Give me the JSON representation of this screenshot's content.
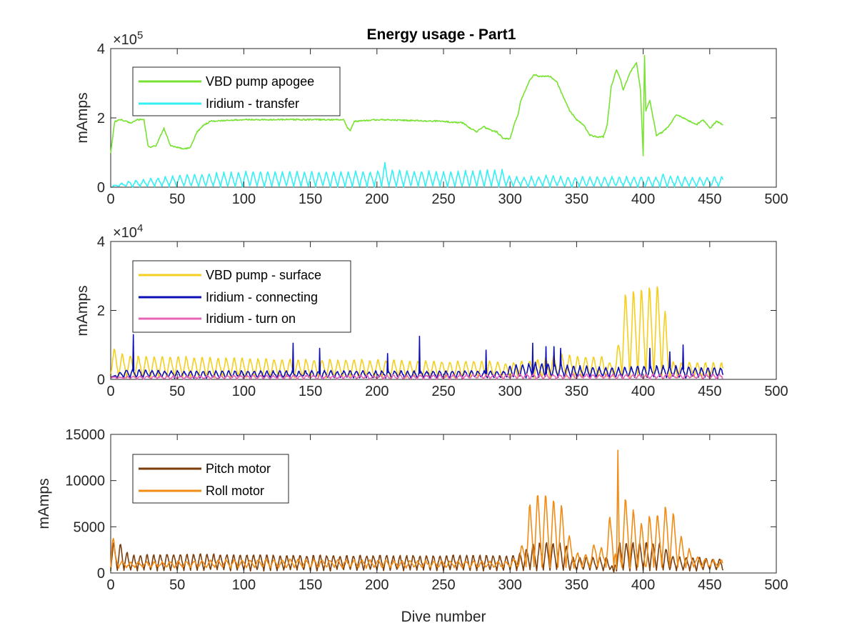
{
  "title": "Energy usage - Part1",
  "chart_data": [
    {
      "type": "line",
      "title": "Energy usage - Part1",
      "ylabel": "mAmps",
      "xlabel": "",
      "xlim": [
        0,
        500
      ],
      "ylim": [
        0,
        4
      ],
      "y_exponent": "5",
      "y_multiplier": "×10",
      "x_ticks": [
        "0",
        "50",
        "100",
        "150",
        "200",
        "250",
        "300",
        "350",
        "400",
        "450",
        "500"
      ],
      "y_ticks": [
        "0",
        "2",
        "4"
      ],
      "legend_position": "top-left",
      "series": [
        {
          "name": "VBD pump apogee",
          "color": "#77e231",
          "style": "smooth",
          "x": [
            0,
            3,
            8,
            15,
            20,
            25,
            28,
            30,
            34,
            40,
            45,
            50,
            55,
            60,
            65,
            70,
            75,
            100,
            150,
            175,
            178,
            180,
            183,
            200,
            250,
            265,
            270,
            275,
            280,
            285,
            290,
            295,
            300,
            303,
            306,
            308,
            315,
            318,
            322,
            325,
            330,
            335,
            340,
            345,
            350,
            355,
            360,
            365,
            370,
            373,
            376,
            380,
            383,
            385,
            390,
            395,
            398,
            400,
            401,
            402,
            405,
            410,
            415,
            420,
            425,
            430,
            435,
            440,
            445,
            450,
            455,
            460
          ],
          "y": [
            1.0,
            1.9,
            1.95,
            1.85,
            1.95,
            1.95,
            1.2,
            1.15,
            1.2,
            1.7,
            1.2,
            1.15,
            1.1,
            1.15,
            1.6,
            1.8,
            1.9,
            1.95,
            1.95,
            1.95,
            1.7,
            1.65,
            1.9,
            1.95,
            1.9,
            1.85,
            1.7,
            1.6,
            1.75,
            1.65,
            1.6,
            1.4,
            1.4,
            1.8,
            2.1,
            2.5,
            3.1,
            3.25,
            3.2,
            3.2,
            3.2,
            3.05,
            2.6,
            2.2,
            1.95,
            1.8,
            1.5,
            1.45,
            1.45,
            1.8,
            2.9,
            3.4,
            3.1,
            2.8,
            3.3,
            3.6,
            2.8,
            0.9,
            3.8,
            2.2,
            2.5,
            1.5,
            1.6,
            1.8,
            2.1,
            2.0,
            1.9,
            1.8,
            1.95,
            1.7,
            1.9,
            1.8
          ]
        },
        {
          "name": "Iridium - transfer",
          "color": "#33f0f5",
          "style": "saw",
          "period": 5.5,
          "x": [
            0,
            10,
            50,
            100,
            150,
            200,
            205,
            210,
            250,
            295,
            298,
            300,
            310,
            320,
            330,
            340,
            350,
            360,
            370,
            380,
            390,
            400,
            410,
            415,
            420,
            430,
            440,
            450,
            460
          ],
          "y": [
            0.0,
            0.15,
            0.35,
            0.45,
            0.45,
            0.45,
            0.75,
            0.5,
            0.45,
            0.5,
            0.4,
            0.3,
            0.3,
            0.3,
            0.35,
            0.3,
            0.3,
            0.3,
            0.3,
            0.3,
            0.3,
            0.3,
            0.3,
            0.4,
            0.3,
            0.3,
            0.3,
            0.3,
            0.3
          ],
          "y_base": 0.02
        }
      ]
    },
    {
      "type": "line",
      "title": "",
      "ylabel": "mAmps",
      "xlabel": "",
      "xlim": [
        0,
        500
      ],
      "ylim": [
        0,
        4
      ],
      "y_exponent": "4",
      "y_multiplier": "×10",
      "x_ticks": [
        "0",
        "50",
        "100",
        "150",
        "200",
        "250",
        "300",
        "350",
        "400",
        "450",
        "500"
      ],
      "y_ticks": [
        "0",
        "2",
        "4"
      ],
      "legend_position": "top-left",
      "series": [
        {
          "name": "VBD pump - surface",
          "color": "#f5cf1f",
          "style": "saw",
          "period": 6,
          "x": [
            0,
            5,
            10,
            20,
            50,
            100,
            150,
            200,
            250,
            295,
            298,
            300,
            320,
            340,
            350,
            370,
            375,
            380,
            385,
            390,
            400,
            410,
            415,
            420,
            425,
            430,
            440,
            450,
            460
          ],
          "y": [
            1.0,
            0.9,
            0.75,
            0.7,
            0.7,
            0.65,
            0.6,
            0.6,
            0.55,
            0.55,
            0.45,
            0.5,
            0.6,
            0.8,
            0.7,
            0.7,
            0.5,
            0.7,
            2.6,
            2.7,
            2.8,
            2.9,
            2.8,
            0.55,
            0.5,
            0.5,
            0.5,
            0.5,
            0.5
          ],
          "y_base": 0.05
        },
        {
          "name": "Iridium - connecting",
          "color": "#0b0fb5",
          "style": "saw",
          "period": 4.8,
          "x": [
            0,
            10,
            50,
            100,
            150,
            200,
            250,
            295,
            300,
            320,
            340,
            350,
            380,
            400,
            420,
            440,
            460
          ],
          "y": [
            0.05,
            0.3,
            0.25,
            0.25,
            0.25,
            0.25,
            0.25,
            0.25,
            0.4,
            0.5,
            0.45,
            0.4,
            0.35,
            0.4,
            0.4,
            0.35,
            0.35
          ],
          "y_base": 0.05,
          "spikes": [
            {
              "x": 17,
              "y": 1.3
            },
            {
              "x": 137,
              "y": 1.05
            },
            {
              "x": 157,
              "y": 0.9
            },
            {
              "x": 208,
              "y": 0.75
            },
            {
              "x": 232,
              "y": 1.25
            },
            {
              "x": 282,
              "y": 0.85
            },
            {
              "x": 317,
              "y": 1.05
            },
            {
              "x": 327,
              "y": 0.95
            },
            {
              "x": 333,
              "y": 0.95
            },
            {
              "x": 338,
              "y": 0.9
            },
            {
              "x": 405,
              "y": 0.9
            },
            {
              "x": 420,
              "y": 0.8
            },
            {
              "x": 430,
              "y": 1.0
            }
          ]
        },
        {
          "name": "Iridium - turn on",
          "color": "#e864b4",
          "style": "saw",
          "period": 5,
          "x": [
            0,
            50,
            100,
            200,
            300,
            350,
            400,
            460
          ],
          "y": [
            0.08,
            0.1,
            0.12,
            0.12,
            0.15,
            0.15,
            0.15,
            0.15
          ],
          "y_base": 0.02
        }
      ]
    },
    {
      "type": "line",
      "title": "",
      "ylabel": "mAmps",
      "xlabel": "Dive number",
      "xlim": [
        0,
        500
      ],
      "ylim": [
        0,
        15000
      ],
      "y_exponent": "",
      "y_multiplier": "",
      "x_ticks": [
        "0",
        "50",
        "100",
        "150",
        "200",
        "250",
        "300",
        "350",
        "400",
        "450",
        "500"
      ],
      "y_ticks": [
        "0",
        "5000",
        "10000",
        "15000"
      ],
      "legend_position": "top-left",
      "series": [
        {
          "name": "Pitch motor",
          "color": "#7a3d0b",
          "style": "saw",
          "period": 5,
          "x": [
            0,
            3,
            8,
            12,
            15,
            50,
            100,
            150,
            200,
            250,
            296,
            300,
            305,
            310,
            315,
            320,
            330,
            340,
            343,
            345,
            360,
            375,
            378,
            380,
            383,
            385,
            400,
            410,
            415,
            420,
            425,
            430,
            450,
            460
          ],
          "y": [
            3800,
            3400,
            3400,
            2400,
            2000,
            2200,
            2100,
            2000,
            2000,
            2000,
            2000,
            2000,
            2200,
            2400,
            3200,
            3500,
            3500,
            3500,
            3000,
            1800,
            1800,
            1800,
            0,
            3500,
            3500,
            3500,
            3500,
            3500,
            3500,
            2000,
            1900,
            1800,
            1700,
            1600
          ],
          "y_base": 300
        },
        {
          "name": "Roll motor",
          "color": "#f08c16",
          "style": "saw",
          "period": 6,
          "x": [
            0,
            1,
            3,
            8,
            15,
            50,
            100,
            150,
            200,
            250,
            296,
            300,
            305,
            310,
            315,
            320,
            325,
            330,
            335,
            340,
            345,
            350,
            355,
            360,
            365,
            370,
            375,
            378,
            380,
            381,
            382,
            383,
            385,
            390,
            395,
            400,
            402,
            404,
            410,
            415,
            420,
            425,
            430,
            440,
            450,
            460
          ],
          "y": [
            5500,
            7000,
            2500,
            1300,
            1200,
            1300,
            1500,
            1500,
            1400,
            1300,
            1300,
            1400,
            1800,
            3500,
            8000,
            9000,
            9300,
            8500,
            8300,
            7500,
            4000,
            2300,
            2000,
            2200,
            4000,
            2500,
            6500,
            8500,
            500,
            14500,
            5000,
            3000,
            8500,
            8500,
            6000,
            5500,
            200,
            6500,
            6500,
            7500,
            7800,
            6000,
            3500,
            1800,
            1500,
            1400
          ],
          "y_base": 600
        }
      ]
    }
  ]
}
